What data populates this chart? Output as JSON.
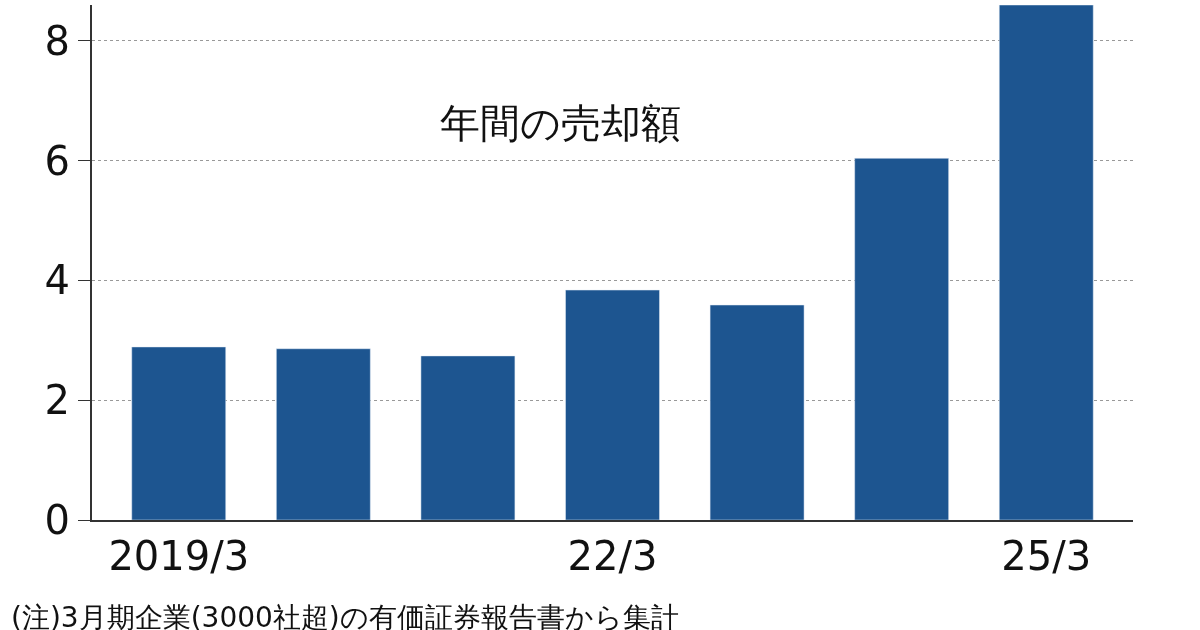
{
  "chart_data": {
    "type": "bar",
    "title": "年間の売却額",
    "categories": [
      "2019/3",
      null,
      null,
      "22/3",
      null,
      null,
      "25/3"
    ],
    "values": [
      2.89,
      2.86,
      2.74,
      3.84,
      3.59,
      6.04,
      8.6
    ],
    "color": "#1d5590",
    "ylim": [
      0,
      8.6
    ],
    "yticks": [
      0,
      2,
      4,
      6,
      8
    ],
    "grid": "y",
    "annotations": [
      "(注)3月期企業(3000社超)の有価証券報告書から集計"
    ]
  }
}
